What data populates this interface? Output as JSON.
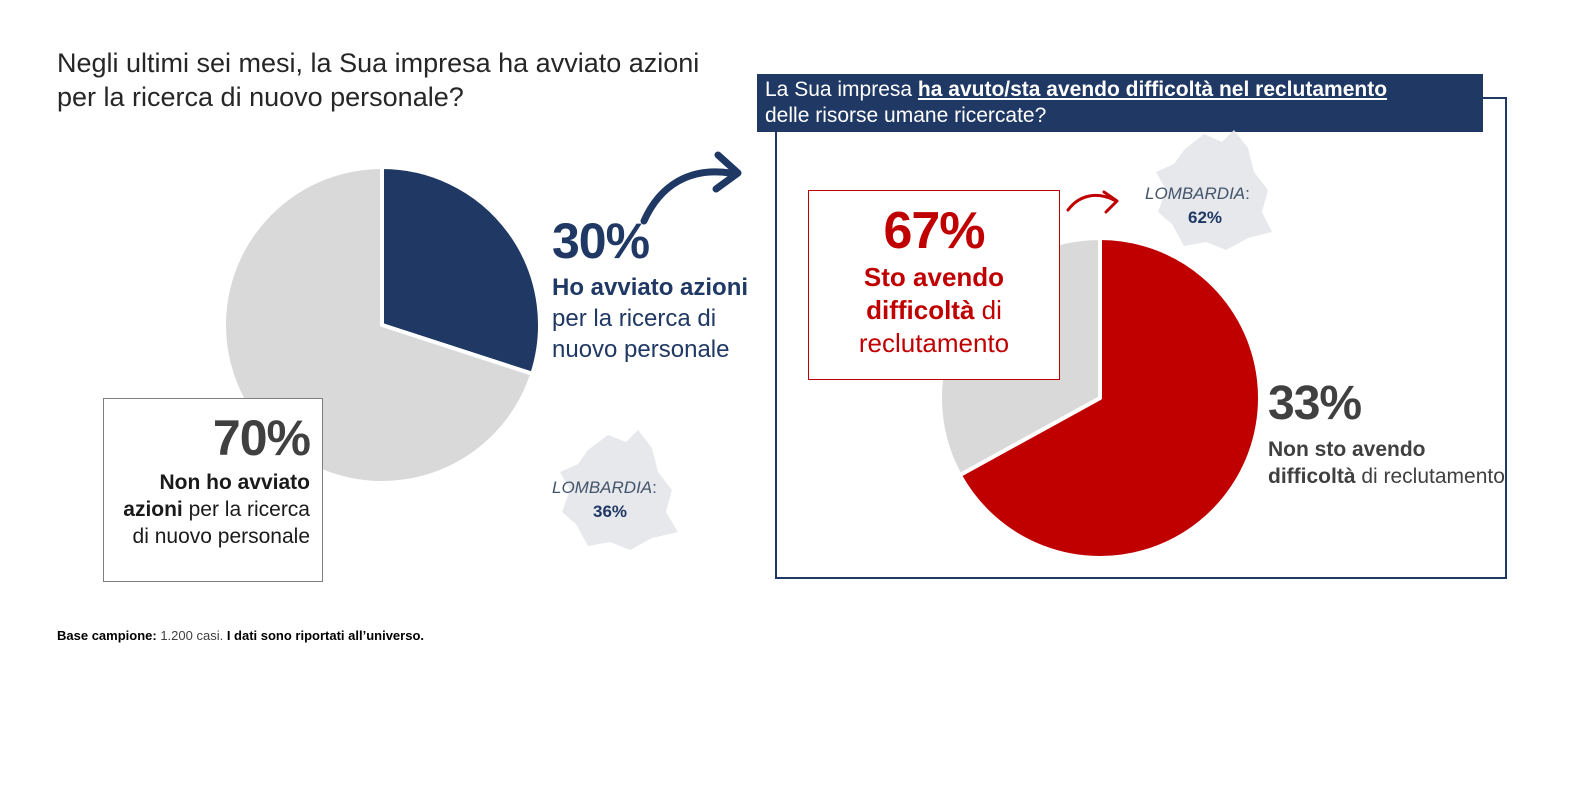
{
  "question_1": "Negli ultimi sei mesi, la Sua impresa ha avviato azioni per la ricerca di nuovo personale?",
  "question_2": {
    "prefix": "La Sua impresa ",
    "emphasis": "ha avuto/sta avendo difficoltà nel reclutamento",
    "suffix": "delle risorse umane ricercate?"
  },
  "left_yes": {
    "pct": "30%",
    "bold": "Ho avviato azioni",
    "rest": " per la ricerca di nuovo personale"
  },
  "left_no": {
    "pct": "70%",
    "bold": "Non ho avviato azioni",
    "rest": " per la ricerca di nuovo personale"
  },
  "right_yes": {
    "pct": "67%",
    "bold": "Sto avendo difficoltà",
    "rest": " di reclutamento"
  },
  "right_no": {
    "pct": "33%",
    "bold": "Non sto avendo difficoltà",
    "rest": " di reclutamento"
  },
  "lombardia_1": {
    "label": "LOMBARDIA",
    "colon": ":",
    "value": "36%"
  },
  "lombardia_2": {
    "label": "LOMBARDIA",
    "colon": ":",
    "value": "62%"
  },
  "footnote": {
    "bold1": "Base campione:",
    "light": " 1.200 casi. ",
    "bold2": "I dati sono riportati all’universo."
  },
  "colors": {
    "navy": "#1f3864",
    "grey": "#d9d9d9",
    "red": "#c00000",
    "dark_text": "#404040"
  },
  "chart_data": [
    {
      "type": "pie",
      "categories": [
        "Ho avviato azioni per la ricerca di nuovo personale",
        "Non ho avviato azioni per la ricerca di nuovo personale"
      ],
      "values": [
        30,
        70
      ],
      "colors": [
        "#1f3864",
        "#d9d9d9"
      ]
    },
    {
      "type": "pie",
      "categories": [
        "Sto avendo difficoltà di reclutamento",
        "Non sto avendo difficoltà di reclutamento"
      ],
      "values": [
        67,
        33
      ],
      "colors": [
        "#c00000",
        "#d9d9d9"
      ]
    }
  ]
}
